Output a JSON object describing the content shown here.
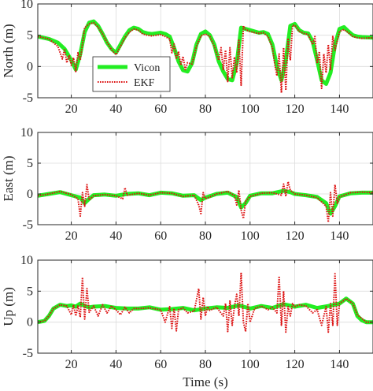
{
  "chart_data": [
    {
      "type": "line",
      "ylabel": "North (m)",
      "xlabel": "",
      "xlim": [
        5,
        155
      ],
      "ylim": [
        -5,
        10
      ],
      "xticks": [
        20,
        40,
        60,
        80,
        100,
        120,
        140
      ],
      "yticks": [
        -5,
        0,
        5,
        10
      ],
      "grid": true,
      "legend": {
        "placement": "inside-left",
        "entries": [
          "Vicon",
          "EKF"
        ]
      },
      "series": [
        {
          "name": "Vicon",
          "color": "#22ee22",
          "style": "solid",
          "x": [
            5,
            10,
            14,
            17,
            20,
            22,
            24,
            26,
            28,
            30,
            32,
            34,
            36,
            38,
            40,
            42,
            44,
            46,
            48,
            50,
            52,
            54,
            56,
            58,
            60,
            62,
            64,
            66,
            68,
            70,
            72,
            74,
            76,
            78,
            80,
            82,
            84,
            86,
            88,
            90,
            92,
            94,
            96,
            98,
            100,
            102,
            104,
            106,
            108,
            110,
            112,
            114,
            116,
            118,
            120,
            122,
            124,
            126,
            128,
            130,
            132,
            134,
            136,
            138,
            140,
            142,
            144,
            146,
            148,
            150,
            155
          ],
          "y": [
            4.8,
            4.4,
            3.8,
            2.8,
            1.0,
            -0.5,
            2.0,
            5.5,
            7.0,
            7.2,
            6.5,
            5.2,
            3.8,
            2.8,
            2.2,
            3.5,
            4.8,
            5.8,
            6.2,
            6.0,
            5.5,
            5.3,
            5.2,
            5.3,
            5.4,
            5.2,
            4.8,
            3.0,
            0.8,
            -0.6,
            -0.8,
            0.5,
            3.5,
            5.2,
            5.6,
            5.0,
            3.5,
            0.8,
            -0.8,
            -2.0,
            -2.2,
            0.5,
            6.2,
            6.0,
            5.8,
            5.6,
            5.4,
            5.5,
            5.2,
            3.5,
            0.0,
            -2.2,
            1.0,
            6.5,
            6.8,
            5.8,
            5.4,
            5.3,
            4.0,
            1.0,
            -2.2,
            -2.8,
            -1.0,
            3.5,
            6.0,
            6.3,
            5.6,
            5.0,
            4.8,
            4.7,
            4.6
          ]
        },
        {
          "name": "EKF",
          "color": "#dd1111",
          "style": "dotted",
          "x": [
            5,
            10,
            14,
            16,
            17,
            18,
            19,
            20,
            21,
            22,
            23,
            24,
            25,
            26,
            28,
            30,
            32,
            34,
            36,
            38,
            40,
            42,
            44,
            46,
            48,
            50,
            52,
            54,
            56,
            58,
            60,
            62,
            64,
            65,
            66,
            67,
            68,
            69,
            70,
            71,
            72,
            74,
            76,
            78,
            80,
            82,
            84,
            86,
            87,
            88,
            89,
            90,
            91,
            92,
            93,
            94,
            95,
            96,
            97,
            98,
            100,
            102,
            104,
            106,
            108,
            110,
            111,
            112,
            113,
            114,
            115,
            116,
            117,
            118,
            119,
            120,
            122,
            124,
            126,
            128,
            129,
            130,
            131,
            132,
            133,
            134,
            135,
            136,
            137,
            138,
            140,
            142,
            144,
            146,
            148,
            150,
            155
          ],
          "y": [
            4.8,
            4.4,
            3.2,
            1.2,
            2.8,
            0.6,
            1.8,
            0.2,
            1.4,
            -0.8,
            2.2,
            1.0,
            3.6,
            6.2,
            6.8,
            7.0,
            6.3,
            5.2,
            3.9,
            2.7,
            1.9,
            3.2,
            4.6,
            5.5,
            6.0,
            5.8,
            5.2,
            5.0,
            4.9,
            5.0,
            5.1,
            4.8,
            4.4,
            2.2,
            3.6,
            1.2,
            2.4,
            0.2,
            1.6,
            -0.5,
            0.6,
            0.4,
            3.2,
            4.9,
            5.2,
            4.8,
            3.2,
            1.0,
            3.0,
            -0.5,
            2.6,
            -2.4,
            3.0,
            -1.8,
            1.5,
            -1.0,
            4.2,
            -3.0,
            6.5,
            5.9,
            5.6,
            5.4,
            5.3,
            5.4,
            4.8,
            3.0,
            0.5,
            -1.5,
            2.0,
            -4.2,
            3.0,
            -3.8,
            4.5,
            1.0,
            6.6,
            6.6,
            5.6,
            5.3,
            5.1,
            3.5,
            4.8,
            0.5,
            2.4,
            -3.5,
            2.0,
            -1.0,
            3.5,
            -0.5,
            4.8,
            2.6,
            5.6,
            5.9,
            5.4,
            4.8,
            4.6,
            4.5,
            4.6
          ]
        }
      ]
    },
    {
      "type": "line",
      "ylabel": "East (m)",
      "xlabel": "",
      "xlim": [
        5,
        155
      ],
      "ylim": [
        -5,
        10
      ],
      "xticks": [
        20,
        40,
        60,
        80,
        100,
        120,
        140
      ],
      "yticks": [
        -5,
        0,
        5,
        10
      ],
      "grid": true,
      "series": [
        {
          "name": "Vicon",
          "color": "#22ee22",
          "style": "solid",
          "x": [
            5,
            10,
            15,
            20,
            24,
            26,
            28,
            30,
            35,
            40,
            45,
            50,
            55,
            60,
            65,
            70,
            75,
            78,
            80,
            85,
            90,
            94,
            96,
            98,
            100,
            105,
            110,
            115,
            118,
            120,
            125,
            130,
            134,
            136,
            138,
            140,
            145,
            150,
            155
          ],
          "y": [
            -0.3,
            0.0,
            0.3,
            -0.2,
            -0.6,
            -1.5,
            -0.8,
            -0.2,
            -0.1,
            -0.3,
            0.0,
            0.1,
            -0.2,
            0.2,
            0.1,
            -0.3,
            -0.2,
            -1.0,
            -0.6,
            0.0,
            0.2,
            -0.5,
            -2.2,
            -1.5,
            -0.3,
            0.1,
            0.1,
            0.5,
            0.3,
            0.0,
            -0.2,
            -0.5,
            -1.5,
            -3.2,
            -2.0,
            -0.4,
            0.1,
            0.2,
            0.2
          ]
        },
        {
          "name": "EKF",
          "color": "#dd1111",
          "style": "dotted",
          "x": [
            5,
            10,
            15,
            20,
            23,
            24,
            25,
            26,
            27,
            28,
            30,
            35,
            40,
            43,
            44,
            45,
            50,
            55,
            60,
            65,
            70,
            75,
            77,
            78,
            79,
            80,
            85,
            90,
            93,
            94,
            95,
            96,
            97,
            98,
            100,
            105,
            110,
            114,
            115,
            116,
            117,
            118,
            120,
            125,
            130,
            134,
            135,
            136,
            137,
            138,
            139,
            140,
            145,
            150,
            155
          ],
          "y": [
            -0.3,
            0.0,
            0.4,
            -0.1,
            -0.8,
            -3.6,
            0.2,
            -2.0,
            1.5,
            -1.0,
            -0.3,
            -0.1,
            -0.3,
            -0.8,
            1.0,
            -0.2,
            0.1,
            -0.2,
            0.2,
            0.1,
            -0.4,
            -0.2,
            -1.8,
            -3.2,
            0.2,
            -0.8,
            0.0,
            0.4,
            -0.3,
            -1.8,
            0.6,
            -2.6,
            -4.0,
            -1.2,
            -0.4,
            0.1,
            0.2,
            -0.2,
            1.6,
            -0.4,
            2.0,
            0.6,
            0.0,
            -0.2,
            -0.6,
            -2.0,
            -4.6,
            0.2,
            -3.6,
            1.5,
            -1.5,
            -0.5,
            0.2,
            0.3,
            0.2
          ]
        }
      ]
    },
    {
      "type": "line",
      "ylabel": "Up (m)",
      "xlabel": "Time (s)",
      "xlim": [
        5,
        155
      ],
      "ylim": [
        -5,
        10
      ],
      "xticks": [
        20,
        40,
        60,
        80,
        100,
        120,
        140
      ],
      "yticks": [
        -5,
        0,
        5,
        10
      ],
      "grid": true,
      "series": [
        {
          "name": "Vicon",
          "color": "#22ee22",
          "style": "solid",
          "x": [
            5,
            8,
            10,
            12,
            15,
            18,
            20,
            22,
            24,
            26,
            28,
            30,
            35,
            40,
            45,
            50,
            55,
            60,
            65,
            70,
            75,
            80,
            85,
            90,
            95,
            97,
            100,
            105,
            110,
            115,
            120,
            125,
            130,
            135,
            140,
            143,
            146,
            148,
            150,
            152,
            155
          ],
          "y": [
            0.0,
            0.2,
            1.0,
            2.2,
            2.8,
            2.6,
            2.7,
            2.5,
            3.0,
            2.6,
            2.4,
            2.5,
            2.6,
            2.3,
            2.2,
            2.2,
            2.4,
            2.0,
            2.1,
            2.3,
            1.9,
            2.2,
            2.4,
            2.3,
            2.7,
            2.5,
            2.2,
            2.6,
            2.3,
            2.9,
            2.5,
            2.8,
            2.3,
            2.6,
            3.0,
            3.8,
            3.0,
            1.0,
            0.3,
            0.0,
            0.0
          ]
        },
        {
          "name": "EKF",
          "color": "#dd1111",
          "style": "dotted",
          "x": [
            5,
            8,
            10,
            12,
            15,
            18,
            20,
            21,
            22,
            23,
            24,
            25,
            26,
            27,
            28,
            30,
            32,
            34,
            36,
            38,
            40,
            42,
            44,
            46,
            48,
            50,
            55,
            60,
            62,
            64,
            65,
            66,
            67,
            68,
            70,
            72,
            75,
            77,
            78,
            79,
            80,
            81,
            82,
            85,
            88,
            89,
            90,
            91,
            92,
            93,
            94,
            95,
            96,
            97,
            98,
            99,
            100,
            102,
            105,
            108,
            110,
            112,
            113,
            114,
            115,
            116,
            117,
            118,
            119,
            120,
            122,
            125,
            128,
            130,
            132,
            134,
            135,
            136,
            137,
            138,
            139,
            140,
            143,
            146,
            148,
            150,
            152,
            155
          ],
          "y": [
            0.0,
            0.2,
            1.0,
            2.2,
            2.8,
            2.6,
            1.2,
            2.8,
            1.0,
            2.6,
            0.8,
            7.2,
            0.5,
            5.4,
            1.6,
            2.6,
            1.0,
            2.8,
            1.5,
            2.6,
            2.0,
            1.2,
            2.4,
            1.5,
            2.2,
            2.2,
            2.3,
            2.0,
            0.0,
            2.5,
            -1.0,
            2.2,
            -1.4,
            2.0,
            2.3,
            1.5,
            1.8,
            5.4,
            0.5,
            4.0,
            1.0,
            2.5,
            1.9,
            2.4,
            1.0,
            3.0,
            -1.5,
            3.5,
            -0.5,
            2.5,
            4.5,
            1.0,
            8.0,
            0.0,
            -1.5,
            3.0,
            0.0,
            2.2,
            2.6,
            2.0,
            2.4,
            1.5,
            7.4,
            -0.5,
            5.0,
            -1.6,
            2.5,
            1.0,
            3.0,
            2.5,
            2.8,
            2.6,
            1.5,
            2.0,
            -0.5,
            2.5,
            -1.6,
            3.0,
            -0.5,
            7.8,
            -0.5,
            3.0,
            3.8,
            3.0,
            1.2,
            0.6,
            0.0,
            0.0
          ]
        }
      ]
    }
  ]
}
